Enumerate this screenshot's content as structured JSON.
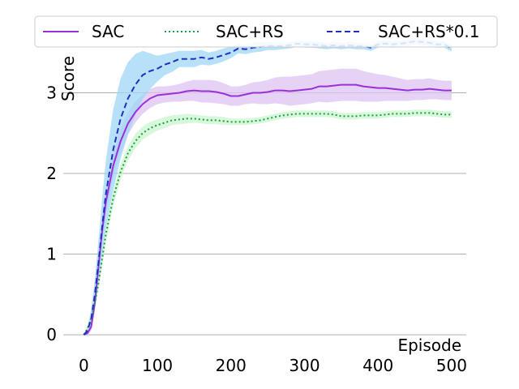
{
  "chart_data": {
    "type": "line",
    "xlabel": "Episode",
    "ylabel": "Score",
    "xlim": [
      -28,
      520
    ],
    "ylim": [
      -0.15,
      3.95
    ],
    "xticks": [
      0,
      100,
      200,
      300,
      400,
      500
    ],
    "yticks": [
      0,
      1,
      2,
      3
    ],
    "grid": "horizontal",
    "legend": {
      "position": "top",
      "columns": 3
    },
    "series": [
      {
        "name": "SAC",
        "color": "#9b30d9",
        "band_color": "#dcc3f2",
        "style": "solid",
        "x": [
          0,
          5,
          10,
          15,
          20,
          25,
          30,
          40,
          50,
          60,
          70,
          80,
          90,
          100,
          110,
          120,
          130,
          140,
          150,
          160,
          170,
          180,
          190,
          200,
          210,
          220,
          230,
          240,
          250,
          260,
          270,
          280,
          290,
          300,
          310,
          320,
          330,
          340,
          350,
          360,
          370,
          380,
          390,
          400,
          410,
          420,
          430,
          440,
          450,
          460,
          470,
          480,
          490,
          500
        ],
        "y": [
          0.0,
          0.02,
          0.1,
          0.4,
          0.85,
          1.3,
          1.65,
          2.1,
          2.4,
          2.62,
          2.76,
          2.86,
          2.93,
          2.97,
          2.98,
          2.99,
          3.0,
          3.02,
          3.03,
          3.02,
          3.02,
          3.01,
          2.99,
          2.96,
          2.96,
          2.98,
          3.0,
          3.0,
          3.01,
          3.03,
          3.03,
          3.02,
          3.03,
          3.04,
          3.05,
          3.08,
          3.08,
          3.09,
          3.1,
          3.1,
          3.1,
          3.08,
          3.07,
          3.06,
          3.06,
          3.05,
          3.04,
          3.03,
          3.04,
          3.04,
          3.05,
          3.04,
          3.03,
          3.03
        ],
        "band": [
          0.0,
          0.02,
          0.05,
          0.1,
          0.12,
          0.15,
          0.15,
          0.15,
          0.15,
          0.14,
          0.13,
          0.12,
          0.12,
          0.11,
          0.1,
          0.1,
          0.11,
          0.12,
          0.13,
          0.14,
          0.14,
          0.14,
          0.13,
          0.12,
          0.12,
          0.12,
          0.13,
          0.14,
          0.15,
          0.16,
          0.17,
          0.18,
          0.18,
          0.18,
          0.18,
          0.19,
          0.2,
          0.2,
          0.2,
          0.2,
          0.2,
          0.19,
          0.18,
          0.17,
          0.16,
          0.15,
          0.14,
          0.13,
          0.13,
          0.13,
          0.13,
          0.12,
          0.12,
          0.12
        ]
      },
      {
        "name": "SAC+RS",
        "color": "#1e9e3e",
        "band_color": "#c9f5cf",
        "style": "dotted",
        "x": [
          0,
          5,
          10,
          15,
          20,
          25,
          30,
          40,
          50,
          60,
          70,
          80,
          90,
          100,
          110,
          120,
          130,
          140,
          150,
          160,
          170,
          180,
          190,
          200,
          210,
          220,
          230,
          240,
          250,
          260,
          270,
          280,
          290,
          300,
          310,
          320,
          330,
          340,
          350,
          360,
          370,
          380,
          390,
          400,
          410,
          420,
          430,
          440,
          450,
          460,
          470,
          480,
          490,
          500
        ],
        "y": [
          0.0,
          0.08,
          0.2,
          0.4,
          0.65,
          0.95,
          1.25,
          1.7,
          2.02,
          2.25,
          2.4,
          2.5,
          2.56,
          2.6,
          2.63,
          2.66,
          2.67,
          2.68,
          2.68,
          2.67,
          2.66,
          2.66,
          2.65,
          2.64,
          2.64,
          2.64,
          2.65,
          2.66,
          2.68,
          2.7,
          2.72,
          2.73,
          2.74,
          2.74,
          2.74,
          2.74,
          2.74,
          2.73,
          2.71,
          2.71,
          2.71,
          2.72,
          2.72,
          2.72,
          2.73,
          2.74,
          2.74,
          2.74,
          2.75,
          2.75,
          2.75,
          2.74,
          2.73,
          2.73
        ],
        "band": [
          0.0,
          0.02,
          0.04,
          0.06,
          0.08,
          0.1,
          0.1,
          0.1,
          0.1,
          0.09,
          0.09,
          0.08,
          0.08,
          0.07,
          0.07,
          0.06,
          0.06,
          0.06,
          0.05,
          0.05,
          0.05,
          0.05,
          0.05,
          0.04,
          0.04,
          0.04,
          0.04,
          0.04,
          0.04,
          0.04,
          0.04,
          0.04,
          0.04,
          0.04,
          0.04,
          0.04,
          0.04,
          0.04,
          0.04,
          0.04,
          0.04,
          0.04,
          0.04,
          0.04,
          0.04,
          0.04,
          0.04,
          0.04,
          0.04,
          0.04,
          0.04,
          0.04,
          0.04,
          0.04
        ]
      },
      {
        "name": "SAC+RS*0.1",
        "color": "#1f2fbf",
        "band_color": "#9fd6f7",
        "style": "dashed",
        "x": [
          0,
          5,
          10,
          15,
          20,
          25,
          30,
          40,
          50,
          60,
          70,
          80,
          90,
          100,
          110,
          120,
          130,
          140,
          150,
          160,
          170,
          180,
          190,
          200,
          210,
          220,
          230,
          240,
          250,
          260,
          270,
          280,
          290,
          300,
          310,
          320,
          330,
          340,
          350,
          360,
          370,
          380,
          390,
          400,
          410,
          420,
          430,
          440,
          450,
          460,
          470,
          480,
          490,
          500
        ],
        "y": [
          0.0,
          0.05,
          0.2,
          0.5,
          0.9,
          1.35,
          1.75,
          2.3,
          2.68,
          2.93,
          3.1,
          3.22,
          3.27,
          3.3,
          3.35,
          3.38,
          3.42,
          3.42,
          3.42,
          3.44,
          3.42,
          3.44,
          3.47,
          3.5,
          3.55,
          3.54,
          3.56,
          3.57,
          3.58,
          3.58,
          3.58,
          3.59,
          3.61,
          3.6,
          3.6,
          3.59,
          3.58,
          3.59,
          3.58,
          3.59,
          3.58,
          3.58,
          3.56,
          3.6,
          3.61,
          3.6,
          3.61,
          3.62,
          3.64,
          3.63,
          3.62,
          3.6,
          3.6,
          3.55
        ],
        "band": [
          0.0,
          0.05,
          0.12,
          0.2,
          0.28,
          0.36,
          0.42,
          0.5,
          0.5,
          0.45,
          0.38,
          0.3,
          0.22,
          0.16,
          0.13,
          0.12,
          0.1,
          0.1,
          0.1,
          0.09,
          0.08,
          0.08,
          0.08,
          0.07,
          0.06,
          0.06,
          0.06,
          0.06,
          0.05,
          0.05,
          0.04,
          0.04,
          0.04,
          0.04,
          0.04,
          0.04,
          0.04,
          0.04,
          0.04,
          0.04,
          0.04,
          0.04,
          0.04,
          0.04,
          0.04,
          0.04,
          0.04,
          0.04,
          0.04,
          0.04,
          0.04,
          0.04,
          0.04,
          0.04
        ]
      }
    ]
  }
}
